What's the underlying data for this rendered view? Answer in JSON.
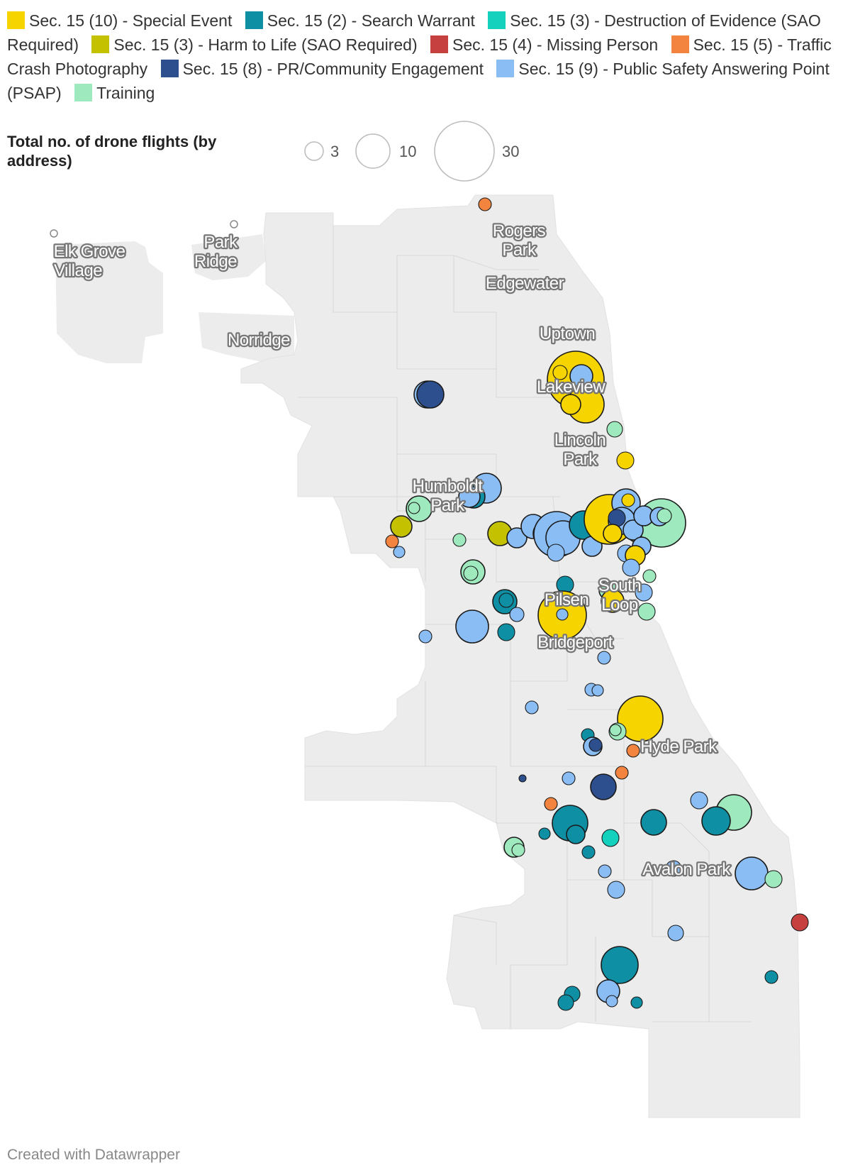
{
  "legend": {
    "items": [
      {
        "label": "Sec. 15 (10) - Special Event",
        "color": "#f5d400"
      },
      {
        "label": "Sec. 15 (2) - Search Warrant",
        "color": "#0e8fa3"
      },
      {
        "label": "Sec. 15 (3) - Destruction of Evidence (SAO Required)",
        "color": "#14d1be"
      },
      {
        "label": "Sec. 15 (3) - Harm to Life (SAO Required)",
        "color": "#c4c200"
      },
      {
        "label": "Sec. 15 (4) - Missing Person",
        "color": "#c64040"
      },
      {
        "label": "Sec. 15 (5) - Traffic Crash Photography",
        "color": "#f2843f"
      },
      {
        "label": "Sec. 15 (8) - PR/Community Engagement",
        "color": "#2d4f8e"
      },
      {
        "label": "Sec. 15 (9) - Public Safety Answering Point (PSAP)",
        "color": "#8bbdf5"
      },
      {
        "label": "Training",
        "color": "#9ee9bd"
      }
    ]
  },
  "size_legend": {
    "title": "Total no. of drone flights (by address)",
    "values": [
      3,
      10,
      30
    ]
  },
  "places": [
    "Rogers Park",
    "Edgewater",
    "Uptown",
    "Lakeview",
    "Lincoln Park",
    "Humboldt Park",
    "Elk Grove Village",
    "Park Ridge",
    "Norridge",
    "Pilsen",
    "South Loop",
    "Bridgeport",
    "Hyde Park",
    "Avalon Park"
  ],
  "credit": "Created with Datawrapper"
}
